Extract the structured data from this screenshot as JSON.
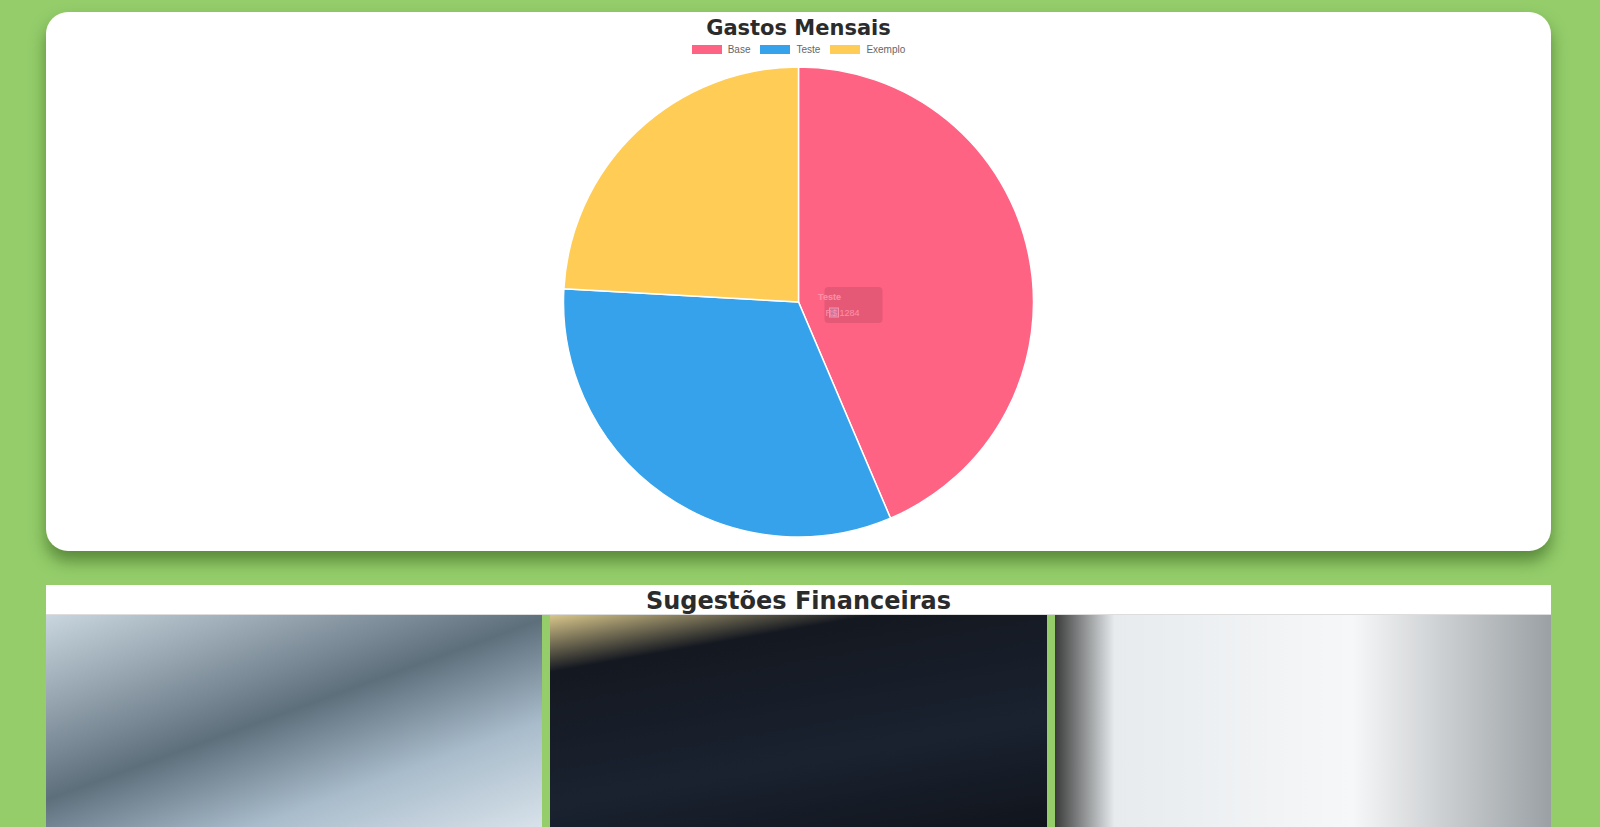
{
  "chart_data": {
    "type": "pie",
    "title": "Gastos Mensais",
    "categories": [
      "Base",
      "Teste",
      "Exemplo"
    ],
    "values": [
      1733,
      1284,
      958
    ],
    "colors": [
      "#ff6384",
      "#36a2eb",
      "#ffcd56"
    ],
    "legend": "top",
    "annotations": [
      {
        "category": "Teste",
        "text": "R$ 1284"
      }
    ]
  },
  "page": {
    "section_title": "Sugestões Financeiras"
  }
}
